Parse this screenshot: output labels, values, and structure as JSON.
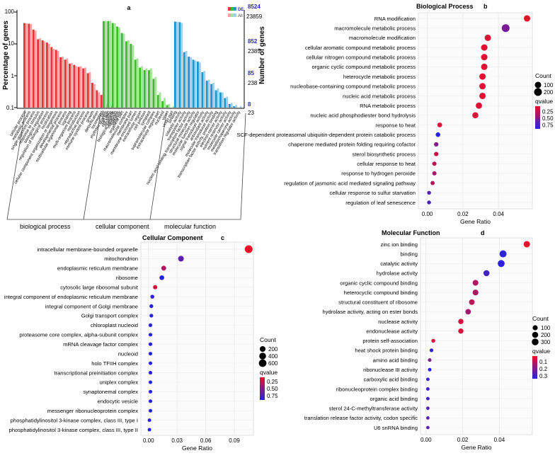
{
  "chart_data": [
    {
      "type": "bar",
      "panel_letter": "a",
      "ylabel": "Percentage of genes",
      "y2label": "Number of genes",
      "yscale": "log",
      "ylim": [
        0.1,
        100
      ],
      "yticks": [
        "0.1",
        "1",
        "10",
        "100"
      ],
      "legend": {
        "position": "top-right",
        "entries": [
          {
            "label": "DE"
          },
          {
            "label": "All"
          }
        ]
      },
      "right_axis_labels": [
        {
          "de": "8524",
          "all": "23859"
        },
        {
          "de": "852",
          "all": "2385"
        },
        {
          "de": "85",
          "all": "238"
        },
        {
          "de": "8",
          "all": "23"
        }
      ],
      "colors": {
        "bp_de": "#e8333c",
        "bp_all": "#f5a3a3",
        "cc_de": "#3dbb2a",
        "cc_all": "#a6e39b",
        "mf_de": "#2196c9",
        "mf_all": "#9fd2ea",
        "de_count": "#2a2ab8"
      },
      "groups": [
        {
          "label": "biological process",
          "categories": [
            "cellular process",
            "metabolic process",
            "single-organism process",
            "response to stimulus",
            "biological regulation",
            "regulation of biological process",
            "localization",
            "cellular component organization or biogenesis",
            "developmental process",
            "multicellular organismal process",
            "signaling",
            "multi-organism process",
            "reproduction",
            "reproductive process",
            "immune system process",
            "growth",
            "detoxification",
            "locomotion",
            "rhythmic process",
            "cell killing",
            "biological adhesion",
            "behavior"
          ],
          "series": [
            {
              "name": "DE",
              "values": [
                45,
                43,
                28,
                14,
                13,
                11,
                8,
                6.5,
                3.8,
                3.2,
                2.4,
                2.2,
                1.9,
                1.7,
                1.2,
                0.6,
                0.35,
                0.25,
                0.12,
                0.11,
                0.1,
                0.1
              ]
            },
            {
              "name": "All",
              "values": [
                44,
                42,
                26,
                15,
                12,
                10,
                7,
                6,
                4,
                3.5,
                2.5,
                2,
                2,
                1.8,
                1.3,
                0.55,
                0.3,
                0.3,
                0.14,
                0.12,
                0.11,
                0.1
              ]
            }
          ]
        },
        {
          "label": "cellular component",
          "categories": [
            "cell",
            "cell part",
            "organelle",
            "membrane",
            "organelle part",
            "macromolecular complex",
            "membrane part",
            "membrane-enclosed lumen",
            "extracellular region",
            "cell junction",
            "symplast",
            "supramolecular complex",
            "extracellular region part",
            "nucleoid",
            "virion",
            "virion part"
          ],
          "series": [
            {
              "name": "DE",
              "values": [
                52,
                52,
                45,
                35,
                22,
                12,
                10,
                3.2,
                1.8,
                1.5,
                1.5,
                0.8,
                0.25,
                0.16,
                0.12,
                0.1
              ]
            },
            {
              "name": "All",
              "values": [
                53,
                53,
                44,
                33,
                21,
                13,
                9,
                3.5,
                2,
                1.7,
                1.7,
                0.9,
                0.3,
                0.2,
                0.13,
                0.11
              ]
            }
          ]
        },
        {
          "label": "molecular function",
          "categories": [
            "binding",
            "catalytic activity",
            "transporter activity",
            "nucleic acid binding transcription factor activity",
            "structural molecule activity",
            "molecular function regulator",
            "signal transducer activity",
            "antioxidant activity",
            "molecular transducer activity",
            "transcription factor activity, protein binding",
            "electron carrier activity",
            "nutrient reservoir activity",
            "molecular carrier activity",
            "metallochaperone activity",
            "translation regulator activity"
          ],
          "series": [
            {
              "name": "DE",
              "values": [
                50,
                48,
                5.5,
                4,
                3.2,
                2.8,
                1.3,
                0.7,
                0.55,
                0.35,
                0.3,
                0.2,
                0.13,
                0.11,
                0.1
              ]
            },
            {
              "name": "All",
              "values": [
                49,
                46,
                6,
                3.8,
                3,
                2.6,
                1.4,
                0.75,
                0.6,
                0.4,
                0.3,
                0.22,
                0.14,
                0.12,
                0.11
              ]
            }
          ]
        }
      ]
    },
    {
      "type": "scatter",
      "panel_letter": "b",
      "title": "Biological Process",
      "xlabel": "Gene Ratio",
      "xlim": [
        -0.005,
        0.059
      ],
      "xticks": [
        "0.00",
        "0.02",
        "0.04"
      ],
      "categories": [
        "RNA modification",
        "macromolecule metabolic process",
        "macromolecule modification",
        "cellular aromatic compound metabolic process",
        "cellular nitrogen compound metabolic process",
        "organic cyclic compound metabolic process",
        "heterocycle metabolic process",
        "nucleobase-containing compound metabolic process",
        "nucleic acid metabolic process",
        "RNA metabolic process",
        "nucleic acid phosphodiester bond hydrolysis",
        "response to heat",
        "SCF-dependent proteasomal ubiquitin-dependent protein catabolic process",
        "chaperone mediated protein folding requiring cofactor",
        "sterol biosynthetic process",
        "cellular response to heat",
        "response to hydrogen peroxide",
        "regulation of jasmonic acid mediated signaling pathway",
        "cellular response to sulfur starvation",
        "regulation of leaf senescence"
      ],
      "x": [
        0.056,
        0.044,
        0.034,
        0.032,
        0.032,
        0.032,
        0.031,
        0.031,
        0.031,
        0.029,
        0.027,
        0.007,
        0.006,
        0.005,
        0.005,
        0.004,
        0.004,
        0.003,
        0.001,
        0.001
      ],
      "count": [
        100,
        200,
        100,
        100,
        100,
        100,
        100,
        100,
        100,
        90,
        80,
        25,
        20,
        15,
        15,
        12,
        12,
        10,
        5,
        5
      ],
      "qvalue": [
        0.05,
        0.55,
        0.1,
        0.1,
        0.1,
        0.1,
        0.1,
        0.1,
        0.1,
        0.1,
        0.12,
        0.12,
        0.95,
        0.5,
        0.2,
        0.25,
        0.35,
        0.3,
        0.7,
        0.75
      ],
      "legend": {
        "position": "right",
        "count_title": "Count",
        "count_values": [
          100,
          200
        ],
        "count_labels": [
          "100",
          "200"
        ],
        "q_title": "qvalue",
        "q_ticks": [
          0.25,
          0.5,
          0.75
        ],
        "q_labels": [
          "0.25",
          "0.50",
          "0.75"
        ],
        "q_range": [
          0.05,
          0.9
        ]
      }
    },
    {
      "type": "scatter",
      "panel_letter": "c",
      "title": "Cellular Component",
      "xlabel": "Gene Ratio",
      "xlim": [
        -0.008,
        0.11
      ],
      "xticks": [
        "0.00",
        "0.03",
        "0.06",
        "0.09"
      ],
      "categories": [
        "intracellular membrane-bounded organelle",
        "mitochondrion",
        "endoplasmic reticulum membrane",
        "ribosome",
        "cytosolic large ribosomal subunit",
        "integral component of endoplasmic reticulum membrane",
        "integral component of Golgi membrane",
        "Golgi transport complex",
        "chloroplast nucleoid",
        "proteasome core complex, alpha-subunit complex",
        "mRNA cleavage factor complex",
        "nucleoid",
        "holo TFIIH complex",
        "transcriptional preinitiation complex",
        "uniplex complex",
        "synaptonemal complex",
        "endocytic vesicle",
        "messenger ribonucleoprotein complex",
        "phosphatidylinositol 3-kinase complex, class III, type I",
        "phosphatidylinositol 3-kinase complex, class III, type II"
      ],
      "x": [
        0.105,
        0.034,
        0.016,
        0.014,
        0.007,
        0.004,
        0.003,
        0.003,
        0.002,
        0.002,
        0.002,
        0.002,
        0.002,
        0.002,
        0.002,
        0.002,
        0.002,
        0.002,
        0.001,
        0.001
      ],
      "count": [
        650,
        200,
        90,
        80,
        40,
        20,
        15,
        12,
        10,
        10,
        10,
        8,
        8,
        8,
        8,
        8,
        8,
        8,
        5,
        5
      ],
      "qvalue": [
        0.1,
        0.7,
        0.35,
        0.9,
        0.2,
        0.85,
        0.9,
        0.95,
        0.95,
        0.95,
        0.95,
        0.95,
        0.95,
        0.95,
        0.95,
        0.95,
        0.95,
        0.95,
        0.95,
        0.95
      ],
      "legend": {
        "position": "right",
        "count_title": "Count",
        "count_values": [
          200,
          400,
          600
        ],
        "count_labels": [
          "200",
          "400",
          "600"
        ],
        "q_title": "qvalue",
        "q_ticks": [
          0.25,
          0.5,
          0.75
        ],
        "q_labels": [
          "0.25",
          "0.50",
          "0.75"
        ],
        "q_range": [
          0.1,
          0.9
        ]
      }
    },
    {
      "type": "scatter",
      "panel_letter": "d",
      "title": "Molecular Function",
      "xlabel": "Gene Ratio",
      "xlim": [
        -0.003,
        0.058
      ],
      "xticks": [
        "0.00",
        "0.02",
        "0.04"
      ],
      "categories": [
        "zinc ion binding",
        "binding",
        "catalytic activity",
        "hydrolase activity",
        "organic cyclic compound binding",
        "heterocyclic compound binding",
        "structural constituent of ribosome",
        "hydrolase activity, acting on ester bonds",
        "nuclease activity",
        "endonuclease activity",
        "protein self-association",
        "heat shock protein binding",
        "amino acid binding",
        "ribonuclease III activity",
        "carboxylic acid binding",
        "ribonucleoprotein complex binding",
        "organic acid binding",
        "sterol 24-C-methyltransferase activity",
        "translation release factor activity, codon specific",
        "U6 snRNA binding"
      ],
      "x": [
        0.055,
        0.042,
        0.041,
        0.033,
        0.027,
        0.027,
        0.025,
        0.023,
        0.019,
        0.019,
        0.004,
        0.003,
        0.002,
        0.002,
        0.001,
        0.001,
        0.001,
        0.001,
        0.001,
        0.001
      ],
      "count": [
        250,
        350,
        330,
        200,
        170,
        170,
        150,
        140,
        120,
        110,
        20,
        15,
        10,
        10,
        8,
        8,
        8,
        6,
        5,
        5
      ],
      "qvalue": [
        0.03,
        0.33,
        0.33,
        0.3,
        0.12,
        0.12,
        0.1,
        0.14,
        0.06,
        0.05,
        0.05,
        0.32,
        0.2,
        0.33,
        0.3,
        0.3,
        0.3,
        0.26,
        0.25,
        0.25
      ],
      "legend": {
        "position": "right",
        "count_title": "Count",
        "count_values": [
          100,
          200,
          300
        ],
        "count_labels": [
          "100",
          "200",
          "300"
        ],
        "q_title": "qvalue",
        "q_ticks": [
          0.1,
          0.2,
          0.3
        ],
        "q_labels": [
          "0.1",
          "0.2",
          "0.3"
        ],
        "q_range": [
          0.02,
          0.34
        ]
      }
    }
  ]
}
